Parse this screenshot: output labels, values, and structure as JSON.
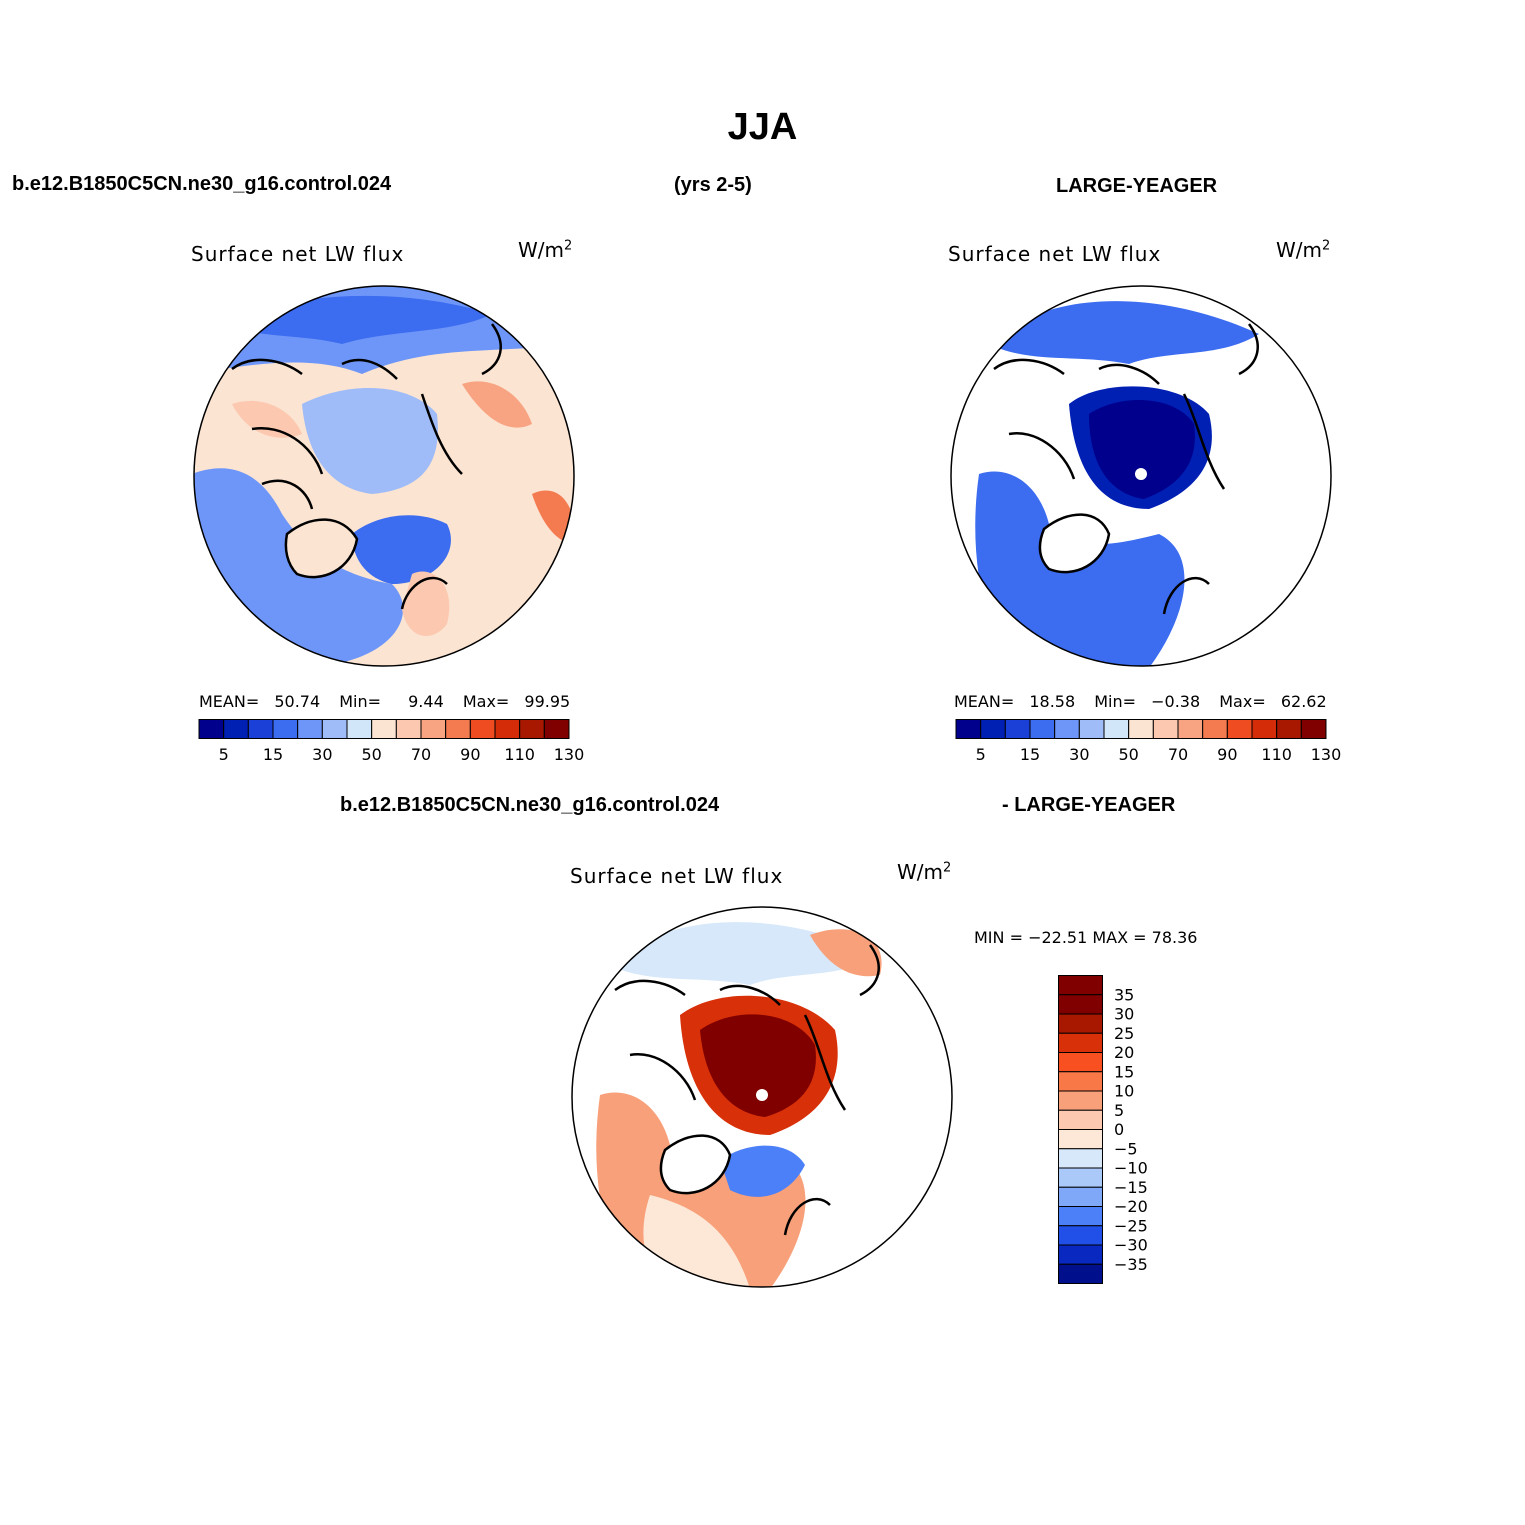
{
  "title": "JJA",
  "headers": {
    "case1": "b.e12.B1850C5CN.ne30_g16.control.024",
    "years": "(yrs 2-5)",
    "case2": "LARGE-YEAGER",
    "diff_case1": "b.e12.B1850C5CN.ne30_g16.control.024",
    "diff_case2": "- LARGE-YEAGER"
  },
  "panels": [
    {
      "variable": "Surface net LW flux",
      "units": "W/m",
      "units_sup": "2",
      "stats": {
        "mean_label": "MEAN=",
        "mean": "50.74",
        "min_label": "Min=",
        "min": "9.44",
        "max_label": "Max=",
        "max": "99.95"
      }
    },
    {
      "variable": "Surface net LW flux",
      "units": "W/m",
      "units_sup": "2",
      "stats": {
        "mean_label": "MEAN=",
        "mean": "18.58",
        "min_label": "Min=",
        "min": "−0.38",
        "max_label": "Max=",
        "max": "62.62"
      }
    },
    {
      "variable": "Surface net LW flux",
      "units": "W/m",
      "units_sup": "2",
      "stats": {
        "text": "MIN = −22.51 MAX =  78.36"
      }
    }
  ],
  "colorbar_abs": {
    "colors": [
      "#00008c",
      "#0020b4",
      "#1a40d8",
      "#3c6cf0",
      "#6e96f8",
      "#a0bcf8",
      "#d2e6fa",
      "#fbe4d2",
      "#fcc8b0",
      "#f8a482",
      "#f47a50",
      "#f04c22",
      "#d42c08",
      "#a81800",
      "#800000"
    ],
    "tick_labels": [
      "5",
      "15",
      "30",
      "50",
      "70",
      "90",
      "110",
      "130"
    ]
  },
  "colorbar_diff": {
    "colors": [
      "#800000",
      "#a81800",
      "#d83008",
      "#f85020",
      "#f87848",
      "#f8a07a",
      "#fcc8b0",
      "#fde8d8",
      "#d6e8fa",
      "#aac8f8",
      "#80a8f8",
      "#4c80f8",
      "#2050e8",
      "#0828c0",
      "#00108c"
    ],
    "tick_labels": [
      "35",
      "30",
      "25",
      "20",
      "15",
      "10",
      "5",
      "0",
      "−5",
      "−10",
      "−15",
      "−20",
      "−25",
      "−30",
      "−35"
    ]
  },
  "map_colors": {
    "land": "#ffffff",
    "coast": "#000000",
    "pole_hole": "#ffffff"
  },
  "chart_data": [
    {
      "type": "heatmap",
      "title": "Surface net LW flux",
      "units": "W/m2",
      "domain": "Arctic polar stereographic",
      "stats": {
        "mean": 50.74,
        "min": 9.44,
        "max": 99.95
      },
      "levels": [
        5,
        10,
        15,
        20,
        30,
        40,
        50,
        60,
        70,
        80,
        90,
        100,
        110,
        120,
        130
      ]
    },
    {
      "type": "heatmap",
      "title": "Surface net LW flux",
      "units": "W/m2",
      "domain": "Arctic polar stereographic",
      "stats": {
        "mean": 18.58,
        "min": -0.38,
        "max": 62.62
      },
      "levels": [
        5,
        10,
        15,
        20,
        30,
        40,
        50,
        60,
        70,
        80,
        90,
        100,
        110,
        120,
        130
      ]
    },
    {
      "type": "heatmap",
      "title": "Surface net LW flux",
      "units": "W/m2",
      "domain": "Arctic polar stereographic",
      "stats": {
        "min": -22.51,
        "max": 78.36
      },
      "levels": [
        -35,
        -30,
        -25,
        -20,
        -15,
        -10,
        -5,
        0,
        5,
        10,
        15,
        20,
        25,
        30,
        35
      ]
    }
  ]
}
